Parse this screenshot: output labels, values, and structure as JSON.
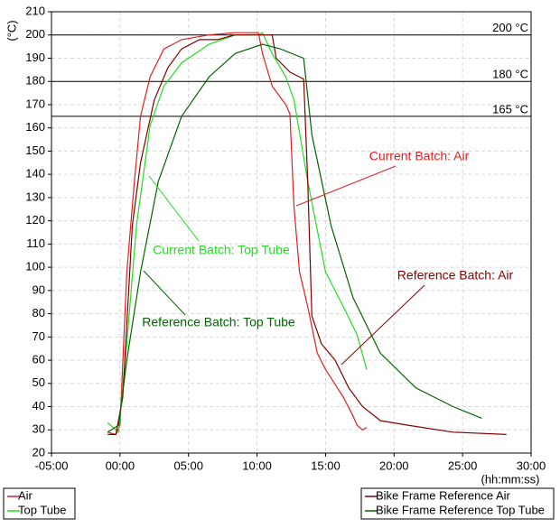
{
  "chart_data": {
    "type": "line",
    "y_label": "(°C)",
    "x_label": "(hh:mm:ss)",
    "xlim": [
      -5,
      30
    ],
    "ylim": [
      20,
      210
    ],
    "xticks": [
      {
        "value": -5,
        "label": "-05:00"
      },
      {
        "value": 0,
        "label": "00:00"
      },
      {
        "value": 5,
        "label": "05:00"
      },
      {
        "value": 10,
        "label": "10:00"
      },
      {
        "value": 15,
        "label": "15:00"
      },
      {
        "value": 20,
        "label": "20:00"
      },
      {
        "value": 25,
        "label": "25:00"
      },
      {
        "value": 30,
        "label": "30:00"
      }
    ],
    "yticks": [
      20,
      30,
      40,
      50,
      60,
      70,
      80,
      90,
      100,
      110,
      120,
      130,
      140,
      150,
      160,
      170,
      180,
      190,
      200,
      210
    ],
    "grid": true,
    "reference_lines": [
      {
        "value": 200,
        "label": "200 °C"
      },
      {
        "value": 180,
        "label": "180 °C"
      },
      {
        "value": 165,
        "label": "165 °C"
      }
    ],
    "series": [
      {
        "name": "Air",
        "color": "#e02020",
        "x": [
          -0.9,
          -0.3,
          0,
          0.5,
          1.05,
          1.5,
          2.2,
          3.2,
          4.5,
          6.5,
          8.4,
          10.1,
          10.4,
          11.1,
          12.1,
          12.4,
          12.7,
          13.1,
          13.7,
          14.4,
          15,
          16.3,
          17,
          17.3,
          17.7,
          18
        ],
        "values": [
          29,
          28,
          32,
          98,
          137,
          165,
          182,
          194,
          198,
          200,
          201,
          201,
          192,
          178,
          170,
          166,
          126,
          98,
          83,
          63,
          56,
          44,
          36,
          32,
          30,
          31
        ]
      },
      {
        "name": "Top Tube",
        "color": "#22dd22",
        "x": [
          -0.9,
          -0.1,
          0.5,
          1.2,
          2.2,
          3.2,
          4.5,
          6.5,
          8.4,
          10.1,
          10.4,
          11.1,
          12.1,
          12.7,
          13.7,
          15,
          16.3,
          17.3,
          18
        ],
        "values": [
          33,
          29,
          67,
          118,
          161,
          178,
          188,
          196,
          200,
          200,
          201,
          192,
          182,
          172,
          137,
          98,
          83,
          71,
          56
        ]
      },
      {
        "name": "Bike Frame Reference Air",
        "color": "#800000",
        "x": [
          -0.9,
          -0.3,
          0.2,
          0.9,
          1.5,
          2.5,
          3.5,
          4.5,
          5.8,
          7.1,
          8.4,
          9.8,
          11.1,
          11.4,
          12.4,
          13.4,
          13.7,
          14,
          14.7,
          15.7,
          16.7,
          17.7,
          19,
          21,
          24.3,
          28.2
        ],
        "values": [
          28,
          28,
          44,
          118,
          145,
          172,
          186,
          194,
          198,
          198,
          200,
          200,
          200,
          190,
          184,
          181,
          137,
          79,
          67,
          60,
          48,
          40,
          34,
          32,
          29,
          28
        ]
      },
      {
        "name": "Bike Frame Reference Top Tube",
        "color": "#006400",
        "x": [
          -0.9,
          -0.1,
          0.5,
          1.5,
          2.8,
          4.5,
          6.5,
          8.4,
          10.4,
          11.7,
          13.4,
          14,
          15.4,
          17,
          19,
          21.6,
          24.3,
          26.4
        ],
        "values": [
          29,
          32,
          60,
          98,
          137,
          165,
          182,
          192,
          196,
          194,
          190,
          157,
          118,
          87,
          63,
          48,
          40,
          35
        ]
      }
    ],
    "annotations": [
      {
        "text": "Current Batch: Air",
        "color": "#e02020"
      },
      {
        "text": "Current Batch: Top Tube",
        "color": "#22dd22"
      },
      {
        "text": "Reference Batch: Air",
        "color": "#800000"
      },
      {
        "text": "Reference Batch: Top Tube",
        "color": "#006400"
      }
    ]
  }
}
